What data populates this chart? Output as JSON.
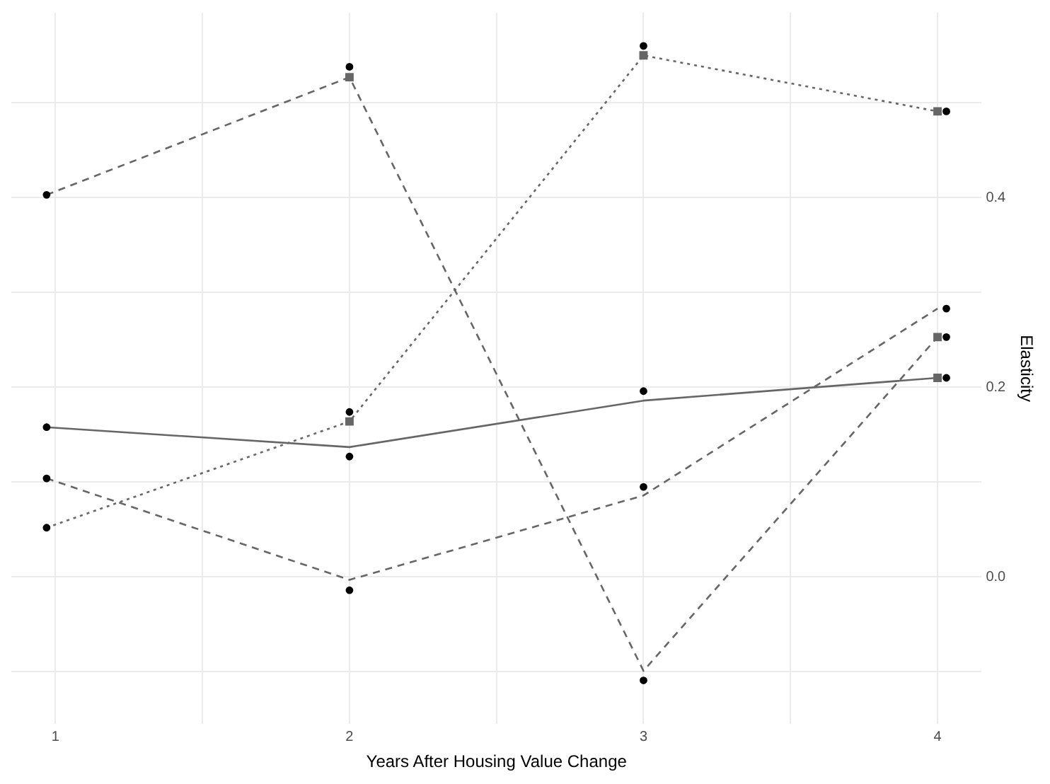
{
  "chart_data": {
    "type": "line",
    "xlabel": "Years After Housing Value Change",
    "ylabel": "Elasticity",
    "xlim": [
      0.85,
      4.15
    ],
    "xticks": [
      1,
      {
        "value": 1.5,
        "label": null
      },
      2,
      {
        "value": 2.5,
        "label": null
      },
      3,
      {
        "value": 3.5,
        "label": null
      },
      4
    ],
    "ylim": [
      -0.155,
      0.595
    ],
    "yticks": [
      {
        "value": -0.1,
        "label": null
      },
      {
        "value": 0,
        "label": "0.0"
      },
      {
        "value": 0.1,
        "label": null
      },
      {
        "value": 0.2,
        "label": "0.2"
      },
      {
        "value": 0.3,
        "label": null
      },
      {
        "value": 0.4,
        "label": "0.4"
      },
      {
        "value": 0.5,
        "label": null
      }
    ],
    "grid": true,
    "legend": false,
    "marker": "none",
    "series": [
      {
        "color": "#666666",
        "line_style": "solid",
        "x": [
          0.97,
          2,
          3,
          4
        ],
        "values": [
          0.158,
          0.137,
          0.186,
          0.21
        ]
      },
      {
        "color": "#666666",
        "line_style": "dashed",
        "x": [
          0.97,
          2,
          3,
          4
        ],
        "values": [
          0.403,
          0.527,
          -0.099,
          0.253
        ]
      },
      {
        "color": "#666666",
        "line_style": "dotted",
        "x": [
          0.97,
          2,
          3,
          4
        ],
        "values": [
          0.052,
          0.164,
          0.55,
          0.491
        ]
      },
      {
        "color": "#666666",
        "line_style": "dashed",
        "x": [
          0.97,
          2,
          3,
          4
        ],
        "values": [
          0.104,
          -0.003,
          0.086,
          0.283
        ]
      },
      {
        "type": "scatter",
        "color": "#666666",
        "marker": "square",
        "x": [
          4,
          2,
          4,
          2,
          3,
          4
        ],
        "values": [
          0.21,
          0.527,
          0.253,
          0.164,
          0.55,
          0.491
        ]
      },
      {
        "type": "scatter",
        "color": "#000000",
        "marker": "circle",
        "x": [
          0.97,
          2,
          3,
          4.03,
          0.97,
          2,
          3,
          4.03,
          0.97,
          2,
          3,
          4.03,
          0.97,
          2,
          3,
          4.03
        ],
        "values": [
          0.158,
          0.127,
          0.196,
          0.21,
          0.403,
          0.538,
          -0.109,
          0.253,
          0.052,
          0.174,
          0.56,
          0.491,
          0.104,
          -0.014,
          0.095,
          0.283
        ]
      }
    ]
  }
}
